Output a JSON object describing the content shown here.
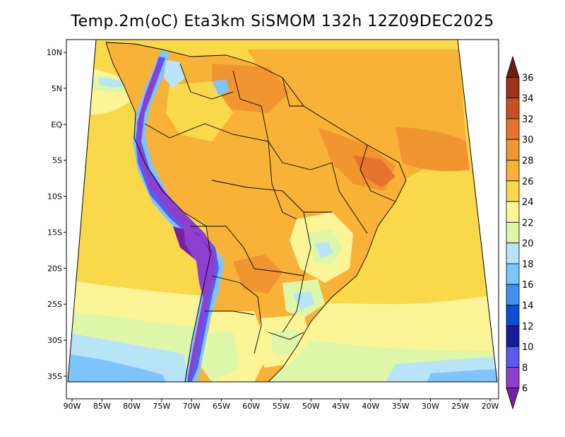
{
  "title": "Temp.2m(oC) Eta3km SiSMOM 132h 12Z09DEC2025",
  "map": {
    "lon_labels": [
      "90W",
      "85W",
      "80W",
      "75W",
      "70W",
      "65W",
      "60W",
      "55W",
      "50W",
      "45W",
      "40W",
      "35W",
      "30W",
      "25W",
      "20W"
    ],
    "lat_labels": [
      "10N",
      "5N",
      "EQ",
      "5S",
      "10S",
      "15S",
      "20S",
      "25S",
      "30S",
      "35S"
    ]
  },
  "colorbar": {
    "labels": [
      "6",
      "8",
      "10",
      "12",
      "14",
      "16",
      "18",
      "20",
      "22",
      "24",
      "26",
      "28",
      "30",
      "32",
      "34",
      "36"
    ],
    "colors": [
      "#7a1fa2",
      "#8e3fcf",
      "#5a5aee",
      "#1a1aa0",
      "#0b4fd0",
      "#3d8ff2",
      "#7ec4ff",
      "#b8e4f8",
      "#ddf6a8",
      "#fbf598",
      "#f9d84a",
      "#f7b237",
      "#f19530",
      "#e4732b",
      "#c8521f",
      "#9e3417",
      "#6a1f0e"
    ]
  }
}
